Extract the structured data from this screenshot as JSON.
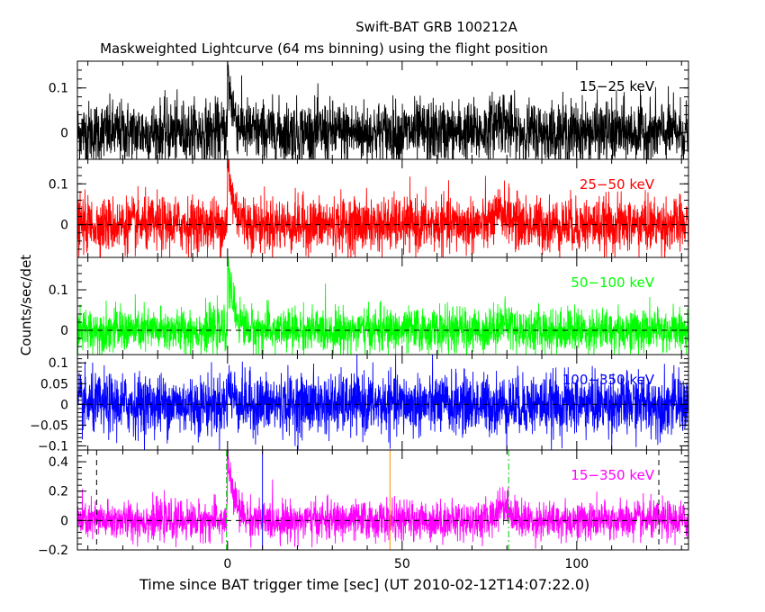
{
  "header": {
    "title": "Swift-BAT GRB 100212A",
    "subtitle": "Maskweighted Lightcurve (64 ms binning) using the flight position"
  },
  "chart_data": {
    "type": "line",
    "title": "Swift-BAT GRB 100212A",
    "subtitle": "Maskweighted Lightcurve (64 ms binning) using the flight position",
    "xlabel": "Time since BAT trigger time [sec] (UT 2010-02-12T14:07:22.0)",
    "ylabel": "Counts/sec/det",
    "xlim": [
      -43,
      132
    ],
    "xticks": [
      0,
      50,
      100
    ],
    "xticklabels": [
      "0",
      "50",
      "100"
    ],
    "panels": [
      {
        "name": "15-25 keV",
        "label": "15−25 keV",
        "color": "#000000",
        "ylim": [
          -0.06,
          0.16
        ],
        "yticks": [
          0,
          0.1
        ],
        "yticklabels": [
          "0",
          "0.1"
        ],
        "zero_line": false,
        "noise_sigma": 0.035,
        "peak_value": 0.13,
        "peak_time": 0,
        "secondary_time": 78,
        "secondary_value": 0.03
      },
      {
        "name": "25-50 keV",
        "label": "25−50 keV",
        "color": "#ff0000",
        "ylim": [
          -0.08,
          0.16
        ],
        "yticks": [
          0,
          0.1
        ],
        "yticklabels": [
          "0",
          "0.1"
        ],
        "zero_line": true,
        "noise_sigma": 0.033,
        "peak_value": 0.15,
        "peak_time": 0,
        "secondary_time": 79,
        "secondary_value": 0.03
      },
      {
        "name": "50-100 keV",
        "label": "50−100 keV",
        "color": "#00ff00",
        "ylim": [
          -0.06,
          0.18
        ],
        "yticks": [
          0,
          0.1
        ],
        "yticklabels": [
          "0",
          "0.1"
        ],
        "zero_line": true,
        "noise_sigma": 0.027,
        "peak_value": 0.16,
        "peak_time": 0,
        "secondary_time": 79,
        "secondary_value": 0.02
      },
      {
        "name": "100-350 keV",
        "label": "100−350 keV",
        "color": "#0000ff",
        "ylim": [
          -0.11,
          0.12
        ],
        "yticks": [
          -0.1,
          -0.05,
          0,
          0.05,
          0.1
        ],
        "yticklabels": [
          "−0.1",
          "−0.05",
          "0",
          "0.05",
          "0.1"
        ],
        "zero_line": true,
        "noise_sigma": 0.036,
        "peak_value": 0.05,
        "peak_time": 0,
        "secondary_time": 79,
        "secondary_value": 0.0
      },
      {
        "name": "15-350 keV",
        "label": "15−350 keV",
        "color": "#ff00ff",
        "ylim": [
          -0.2,
          0.48
        ],
        "yticks": [
          -0.2,
          0,
          0.2,
          0.4
        ],
        "yticklabels": [
          "−0.2",
          "0",
          "0.2",
          "0.4"
        ],
        "zero_line": true,
        "noise_sigma": 0.065,
        "peak_value": 0.45,
        "peak_time": 0,
        "secondary_time": 79,
        "secondary_value": 0.11,
        "markers": [
          {
            "x": -37.5,
            "color": "#000000",
            "style": "dash"
          },
          {
            "x": -0.3,
            "color": "#00cc00",
            "style": "dashdot"
          },
          {
            "x": 10,
            "color": "#0000ff",
            "style": "solid"
          },
          {
            "x": 46.5,
            "color": "#ff8c00",
            "style": "solid"
          },
          {
            "x": 80.5,
            "color": "#00cc00",
            "style": "dashdot"
          },
          {
            "x": 123.5,
            "color": "#000000",
            "style": "dash"
          }
        ]
      }
    ]
  }
}
